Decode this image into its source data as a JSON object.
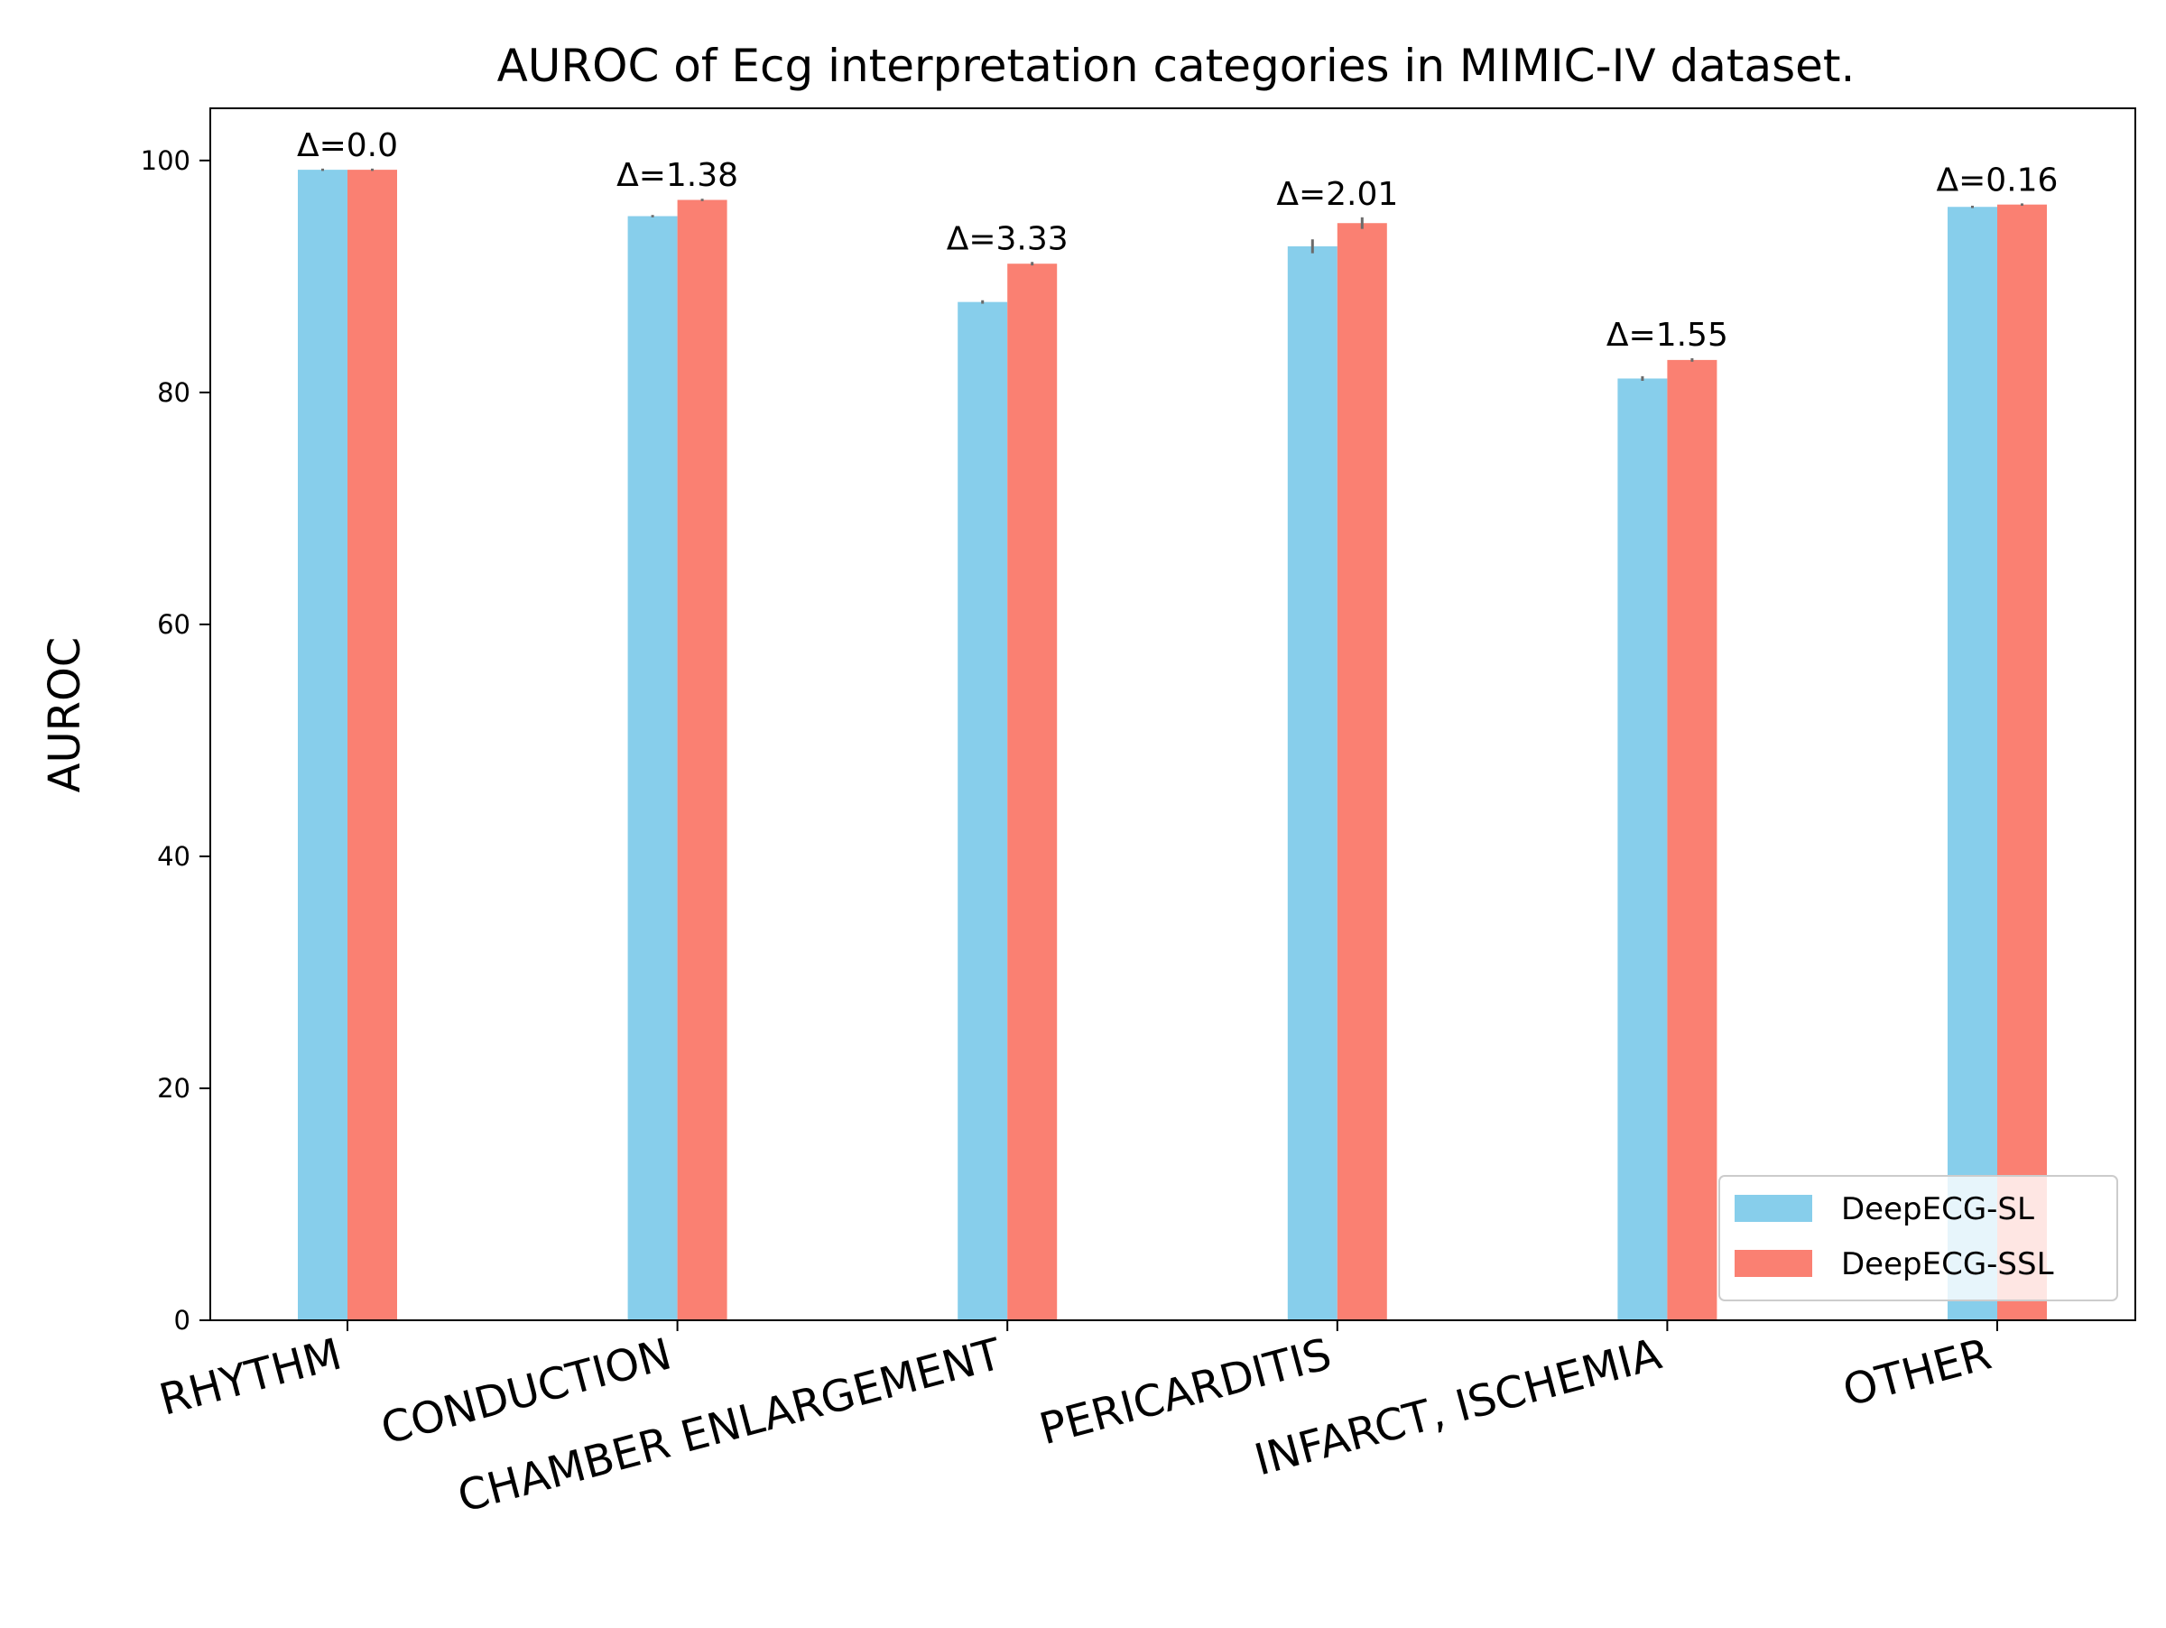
{
  "chart_data": {
    "type": "bar",
    "title": "AUROC of Ecg interpretation categories in MIMIC-IV dataset.",
    "xlabel": "",
    "ylabel": "AUROC",
    "ylim": [
      0,
      104.5
    ],
    "yticks": [
      0,
      20,
      40,
      60,
      80,
      100
    ],
    "grid": false,
    "legend_position": "bottom-right",
    "categories": [
      "RHYTHM",
      "CONDUCTION",
      "CHAMBER ENLARGEMENT",
      "PERICARDITIS",
      "INFARCT, ISCHEMIA",
      "OTHER"
    ],
    "series": [
      {
        "name": "DeepECG-SL",
        "color": "#87CEEB",
        "values": [
          99.2,
          95.2,
          87.8,
          92.6,
          81.2,
          96.0
        ],
        "errors": [
          0.1,
          0.1,
          0.15,
          0.6,
          0.2,
          0.1
        ]
      },
      {
        "name": "DeepECG-SSL",
        "color": "#FA8072",
        "values": [
          99.2,
          96.6,
          91.1,
          94.6,
          82.8,
          96.2
        ],
        "errors": [
          0.1,
          0.1,
          0.15,
          0.5,
          0.15,
          0.1
        ]
      }
    ],
    "annotations": [
      "Δ=0.0",
      "Δ=1.38",
      "Δ=3.33",
      "Δ=2.01",
      "Δ=1.55",
      "Δ=0.16"
    ]
  }
}
